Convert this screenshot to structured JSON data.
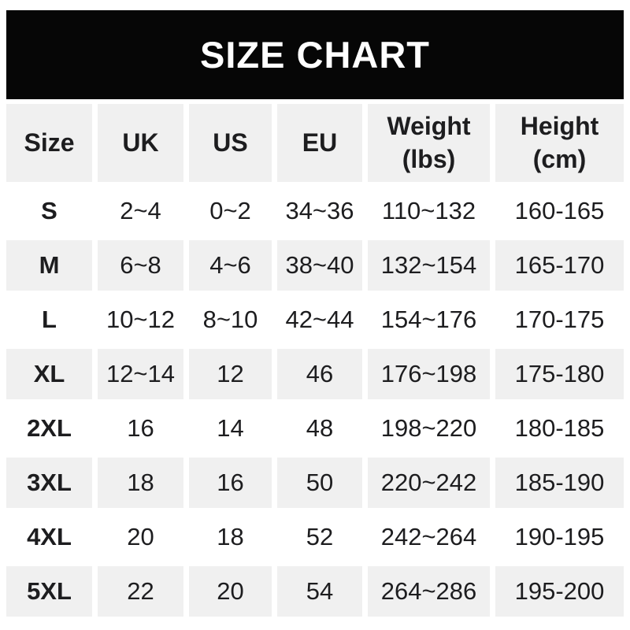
{
  "title": "SIZE CHART",
  "colors": {
    "banner_bg": "#060606",
    "banner_text": "#ffffff",
    "row_alt_bg": "#f0f0f0",
    "row_bg": "#ffffff",
    "text": "#1d1d1f"
  },
  "chart_data": {
    "type": "table",
    "title": "SIZE CHART",
    "headers": [
      {
        "line1": "Size",
        "line2": ""
      },
      {
        "line1": "UK",
        "line2": ""
      },
      {
        "line1": "US",
        "line2": ""
      },
      {
        "line1": "EU",
        "line2": ""
      },
      {
        "line1": "Weight",
        "line2": "(lbs)"
      },
      {
        "line1": "Height",
        "line2": "(cm)"
      }
    ],
    "rows": [
      [
        "S",
        "2~4",
        "0~2",
        "34~36",
        "110~132",
        "160-165"
      ],
      [
        "M",
        "6~8",
        "4~6",
        "38~40",
        "132~154",
        "165-170"
      ],
      [
        "L",
        "10~12",
        "8~10",
        "42~44",
        "154~176",
        "170-175"
      ],
      [
        "XL",
        "12~14",
        "12",
        "46",
        "176~198",
        "175-180"
      ],
      [
        "2XL",
        "16",
        "14",
        "48",
        "198~220",
        "180-185"
      ],
      [
        "3XL",
        "18",
        "16",
        "50",
        "220~242",
        "185-190"
      ],
      [
        "4XL",
        "20",
        "18",
        "52",
        "242~264",
        "190-195"
      ],
      [
        "5XL",
        "22",
        "20",
        "54",
        "264~286",
        "195-200"
      ]
    ]
  }
}
